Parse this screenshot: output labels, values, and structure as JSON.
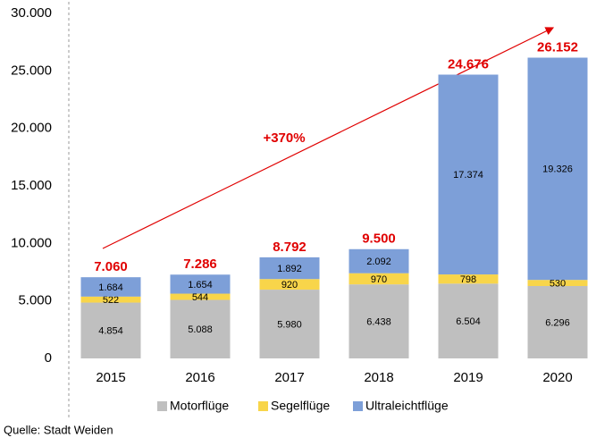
{
  "chart_data": {
    "type": "stacked_bar",
    "categories": [
      "2015",
      "2016",
      "2017",
      "2018",
      "2019",
      "2020"
    ],
    "series": [
      {
        "name": "Motorflüge",
        "color": "#bfbfbf",
        "values": [
          4854,
          5088,
          5980,
          6438,
          6504,
          6296
        ],
        "value_labels": [
          "4.854",
          "5.088",
          "5.980",
          "6.438",
          "6.504",
          "6.296"
        ]
      },
      {
        "name": "Segelflüge",
        "color": "#f8d54a",
        "values": [
          522,
          544,
          920,
          970,
          798,
          530
        ],
        "value_labels": [
          "522",
          "544",
          "920",
          "970",
          "798",
          "530"
        ]
      },
      {
        "name": "Ultraleichtflüge",
        "color": "#7d9fd8",
        "values": [
          1684,
          1654,
          1892,
          2092,
          17374,
          19326
        ],
        "value_labels": [
          "1.684",
          "1.654",
          "1.892",
          "2.092",
          "17.374",
          "19.326"
        ]
      }
    ],
    "totals": {
      "values": [
        7060,
        7286,
        8792,
        9500,
        24676,
        26152
      ],
      "value_labels": [
        "7.060",
        "7.286",
        "8.792",
        "9.500",
        "24.676",
        "26.152"
      ],
      "color": "#e00000"
    },
    "ylim": [
      0,
      30000
    ],
    "yticks": [
      0,
      {
        "value": 5000,
        "label": "5.000"
      },
      {
        "value": 10000,
        "label": "10.000"
      },
      {
        "value": 15000,
        "label": "15.000"
      },
      {
        "value": 20000,
        "label": "20.000"
      },
      {
        "value": 25000,
        "label": "25.000"
      },
      {
        "value": 30000,
        "label": "30.000"
      }
    ],
    "grid": false,
    "annotation": "+370%",
    "source": "Quelle: Stadt Weiden"
  }
}
